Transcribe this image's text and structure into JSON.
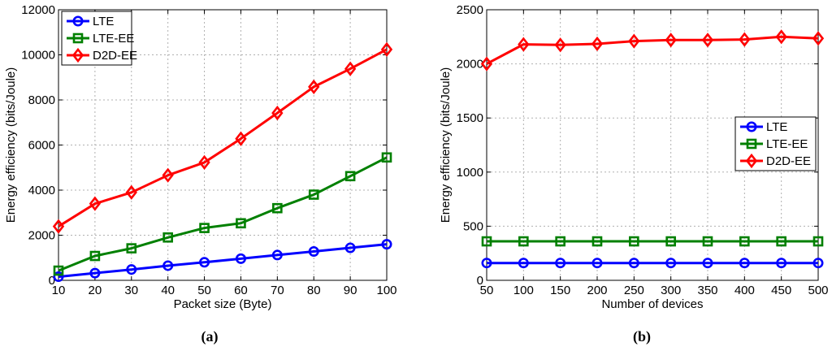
{
  "chart_data": [
    {
      "type": "line",
      "caption": "(a)",
      "xlabel": "Packet size (Byte)",
      "ylabel": "Energy efficiency (bits/Joule)",
      "xlim": [
        10,
        100
      ],
      "ylim": [
        0,
        12000
      ],
      "x": [
        10,
        20,
        30,
        40,
        50,
        60,
        70,
        80,
        90,
        100
      ],
      "xticks": [
        "10",
        "20",
        "30",
        "40",
        "50",
        "60",
        "70",
        "80",
        "90",
        "100"
      ],
      "yticks": [
        "0",
        "2000",
        "4000",
        "6000",
        "8000",
        "10000",
        "12000"
      ],
      "grid": true,
      "legend_position": "top-left",
      "series": [
        {
          "name": "LTE",
          "color": "#0000ff",
          "marker": "circle",
          "values": [
            160,
            320,
            480,
            650,
            800,
            960,
            1120,
            1280,
            1440,
            1600
          ]
        },
        {
          "name": "LTE-EE",
          "color": "#008000",
          "marker": "square",
          "values": [
            430,
            1080,
            1420,
            1900,
            2320,
            2530,
            3200,
            3800,
            4620,
            5450
          ]
        },
        {
          "name": "D2D-EE",
          "color": "#ff0000",
          "marker": "diamond",
          "values": [
            2390,
            3400,
            3900,
            4660,
            5230,
            6280,
            7420,
            8580,
            9380,
            10240
          ]
        }
      ]
    },
    {
      "type": "line",
      "caption": "(b)",
      "xlabel": "Number of devices",
      "ylabel": "Energy efficiency (bits/Joule)",
      "xlim": [
        50,
        500
      ],
      "ylim": [
        0,
        2500
      ],
      "x": [
        50,
        100,
        150,
        200,
        250,
        300,
        350,
        400,
        450,
        500
      ],
      "xticks": [
        "50",
        "100",
        "150",
        "200",
        "250",
        "300",
        "350",
        "400",
        "450",
        "500"
      ],
      "yticks": [
        "0",
        "500",
        "1000",
        "1500",
        "2000",
        "2500"
      ],
      "grid": true,
      "legend_position": "center-right",
      "series": [
        {
          "name": "LTE",
          "color": "#0000ff",
          "marker": "circle",
          "values": [
            160,
            160,
            160,
            160,
            160,
            160,
            160,
            160,
            160,
            160
          ]
        },
        {
          "name": "LTE-EE",
          "color": "#008000",
          "marker": "square",
          "values": [
            360,
            360,
            360,
            360,
            360,
            360,
            360,
            360,
            360,
            360
          ]
        },
        {
          "name": "D2D-EE",
          "color": "#ff0000",
          "marker": "diamond",
          "values": [
            2000,
            2180,
            2175,
            2185,
            2210,
            2220,
            2220,
            2225,
            2250,
            2235
          ]
        }
      ]
    }
  ]
}
